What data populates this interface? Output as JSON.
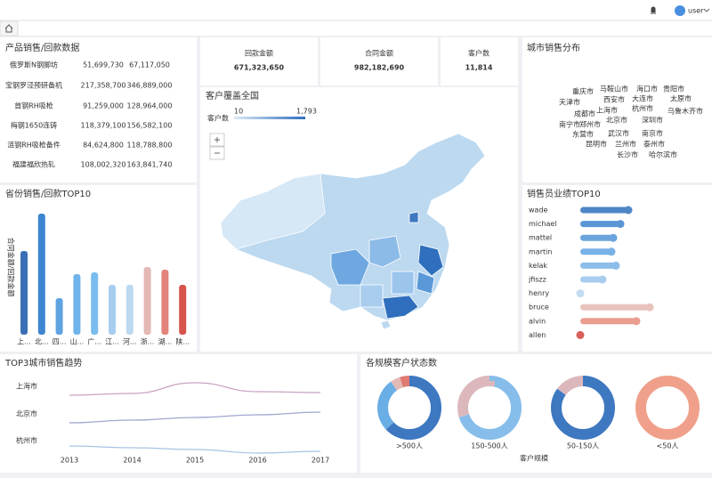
{
  "topbar": {
    "user": "user"
  },
  "product_table": {
    "title": "产品销售/回款数据",
    "row_colors": [
      "#3d7fc1",
      "#e0605a",
      "#3d7fc1",
      "#3d7fc1",
      "#3d7fc1",
      "#3d7fc1"
    ],
    "rows": [
      [
        "俄罗斯N钢脚坊",
        "51,699,730",
        "67,117,050"
      ],
      [
        "宝钢罗泾预研备机",
        "217,358,700",
        "346,889,000"
      ],
      [
        "首钢RH吸枪",
        "91,259,000",
        "128,964,000"
      ],
      [
        "梅钢1650连铸",
        "118,379,100",
        "156,582,100"
      ],
      [
        "涟钢RH吸枪备件",
        "84,624,800",
        "118,788,800"
      ],
      [
        "福建福欣热轧",
        "108,002,320",
        "163,841,740"
      ]
    ]
  },
  "kpis": [
    {
      "label": "回款金额",
      "value": "671,323,650",
      "color": "#5b8fc9"
    },
    {
      "label": "合同金额",
      "value": "982,182,690",
      "color": "#d9605a"
    },
    {
      "label": "客户数",
      "value": "11,814",
      "color": "#ef8a6e"
    }
  ],
  "map": {
    "title": "客户覆盖全国",
    "legend_label": "客户数",
    "legend_min": "10",
    "legend_max": "1,793"
  },
  "word_cloud": {
    "title": "城市销售分布",
    "words": [
      {
        "text": "北京市",
        "size": 14
      },
      {
        "text": "上海市",
        "size": 12
      },
      {
        "text": "深圳市",
        "size": 10
      },
      {
        "text": "杭州市",
        "size": 10
      },
      {
        "text": "成都市",
        "size": 9
      },
      {
        "text": "西安市",
        "size": 9
      },
      {
        "text": "大连市",
        "size": 8
      },
      {
        "text": "郑州市",
        "size": 9
      },
      {
        "text": "东营市",
        "size": 9
      },
      {
        "text": "武汉市",
        "size": 9
      },
      {
        "text": "南京市",
        "size": 9
      },
      {
        "text": "昆明市",
        "size": 8
      },
      {
        "text": "兰州市",
        "size": 8
      },
      {
        "text": "泰州市",
        "size": 8
      },
      {
        "text": "重庆市",
        "size": 7
      },
      {
        "text": "马鞍山市",
        "size": 7
      },
      {
        "text": "海口市",
        "size": 7
      },
      {
        "text": "太原市",
        "size": 7
      },
      {
        "text": "乌鲁木齐市",
        "size": 7
      },
      {
        "text": "贵阳市",
        "size": 7
      },
      {
        "text": "哈尔滨市",
        "size": 6
      },
      {
        "text": "天津市",
        "size": 6
      },
      {
        "text": "南宁市",
        "size": 6
      },
      {
        "text": "长沙市",
        "size": 6
      }
    ]
  },
  "province_chart": {
    "type": "bar",
    "title": "省份销售/回款TOP10",
    "y_label": "合同金额/回款金额",
    "categories": [
      "上...",
      "北...",
      "四...",
      "山...",
      "广...",
      "江...",
      "河...",
      "浙...",
      "湖...",
      "陕..."
    ],
    "values": [
      94,
      136,
      41,
      68,
      70,
      56,
      56,
      76,
      73,
      56
    ],
    "colors": [
      "#3a6fb5",
      "#3d85d0",
      "#5ea3e0",
      "#6fb3ea",
      "#7bbcee",
      "#a6cdee",
      "#bcd9f0",
      "#e4b8b4",
      "#e3837a",
      "#d6544c"
    ]
  },
  "sales_chart": {
    "type": "bar",
    "title": "销售员业绩TOP10",
    "categories": [
      "wade",
      "michael",
      "mattel",
      "martin",
      "kelak",
      "jfiszz",
      "henry",
      "bruce",
      "alvin",
      "allen"
    ],
    "values": [
      54,
      45,
      37,
      35,
      40,
      25,
      0,
      78,
      63,
      0
    ],
    "colors": [
      "#4f86c6",
      "#5b95d4",
      "#6aa4de",
      "#78b1e6",
      "#8dbde9",
      "#a8cdee",
      "#c4dcf2",
      "#e8c3bd",
      "#eb9d90",
      "#d9605a"
    ]
  },
  "trend_chart": {
    "type": "line",
    "title": "TOP3城市销售趋势",
    "x": [
      2013,
      2014,
      2015,
      2016,
      2017
    ],
    "series": [
      {
        "name": "上海市",
        "color": "#c9a2c0",
        "values": [
          0,
          2,
          14,
          4,
          3
        ]
      },
      {
        "name": "北京市",
        "color": "#a0a6d0",
        "values": [
          0,
          3,
          6,
          9,
          12
        ]
      },
      {
        "name": "杭州市",
        "color": "#a7c4e4",
        "values": [
          4,
          2,
          0,
          -4,
          -2
        ]
      }
    ]
  },
  "donut_chart": {
    "type": "pie",
    "title": "各规模客户状态数",
    "x_label": "客户规模",
    "groups": [
      {
        "name": ">500人",
        "values": [
          63,
          27,
          5,
          5
        ],
        "colors": [
          "#3d78c0",
          "#6aaee6",
          "#e3b9b6",
          "#e07a72"
        ]
      },
      {
        "name": "150-500人",
        "values": [
          70,
          30
        ],
        "colors": [
          "#86bdea",
          "#dcb8bc"
        ]
      },
      {
        "name": "50-150人",
        "values": [
          85,
          15
        ],
        "colors": [
          "#3d78c0",
          "#dcb8bc"
        ]
      },
      {
        "name": "<50人",
        "values": [
          100
        ],
        "colors": [
          "#f0a08a"
        ]
      }
    ]
  }
}
